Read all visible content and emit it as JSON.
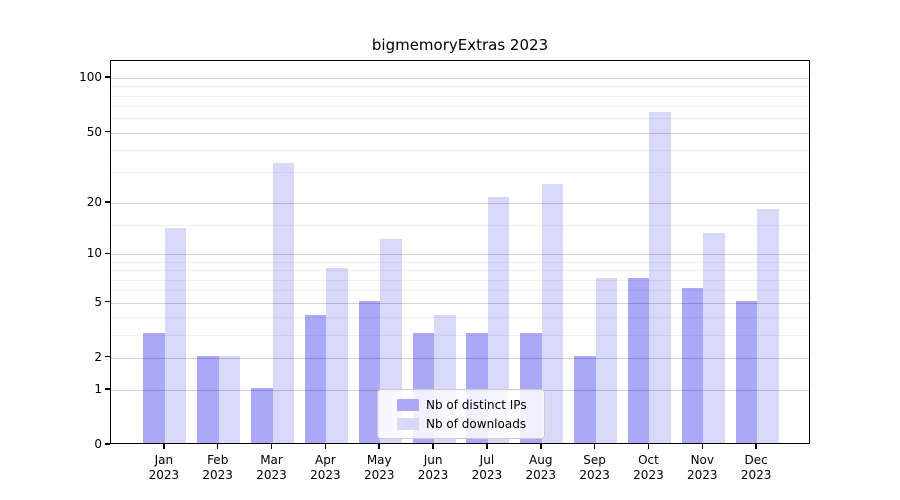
{
  "chart_data": {
    "type": "bar",
    "title": "bigmemoryExtras 2023",
    "categories": [
      "Jan",
      "Feb",
      "Mar",
      "Apr",
      "May",
      "Jun",
      "Jul",
      "Aug",
      "Sep",
      "Oct",
      "Nov",
      "Dec"
    ],
    "category_year": "2023",
    "series": [
      {
        "name": "Nb of distinct IPs",
        "color": "#a9a9f8",
        "values": [
          3,
          2,
          1,
          4,
          5,
          3,
          3,
          3,
          2,
          7,
          6,
          5
        ]
      },
      {
        "name": "Nb of downloads",
        "color": "#d8d8f9",
        "values": [
          14,
          2,
          33,
          8,
          12,
          4,
          21,
          25,
          7,
          63,
          13,
          18
        ]
      }
    ],
    "yscale": "log10(1+y)",
    "y_ticks": [
      0,
      1,
      2,
      5,
      10,
      20,
      50,
      100
    ],
    "y_minor_gridlines": [
      3,
      4,
      6,
      7,
      8,
      9,
      15,
      30,
      40,
      60,
      70,
      80,
      90
    ],
    "ylim": [
      0,
      120
    ],
    "xlabel": "",
    "ylabel": "",
    "grid": "on",
    "legend_position": "lower center inside plot"
  },
  "colors": {
    "axis": "#000000",
    "text": "#000000",
    "major_grid": "rgba(0,0,0,0.18)",
    "minor_grid": "rgba(0,0,0,0.055)",
    "legend_border": "#cccccc",
    "legend_background": "rgba(255,255,255,0.82)",
    "bar_distinct_ips": "#a9a9f8",
    "bar_downloads": "#d8d8f9"
  }
}
